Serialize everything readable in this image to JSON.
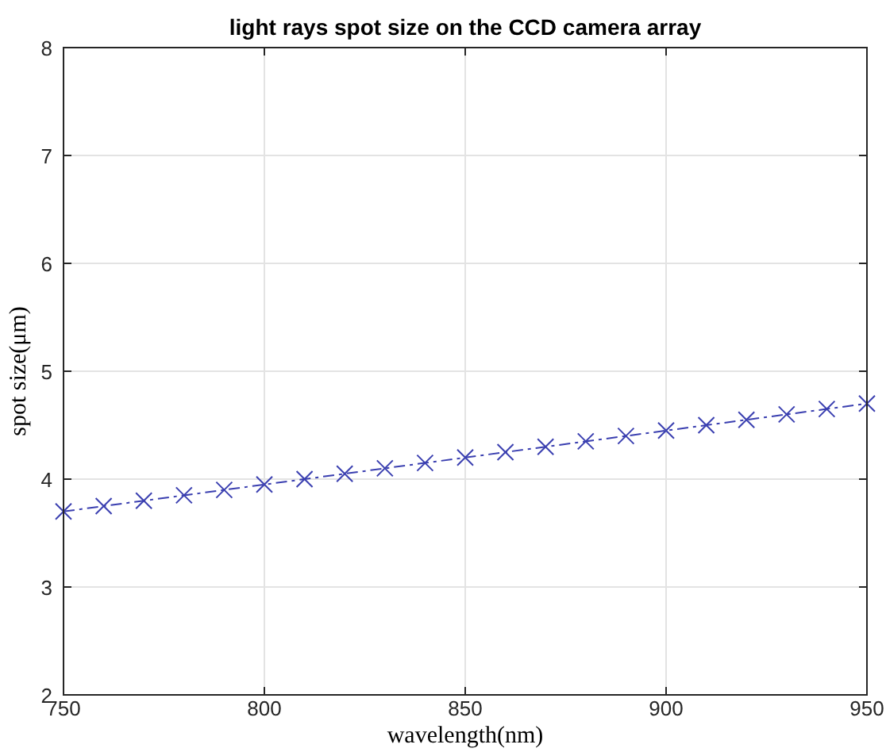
{
  "chart_data": {
    "type": "line",
    "title": "light rays spot size on the CCD camera array",
    "xlabel": "wavelength(nm)",
    "ylabel": "spot size(μm)",
    "x": [
      750,
      760,
      770,
      780,
      790,
      800,
      810,
      820,
      830,
      840,
      850,
      860,
      870,
      880,
      890,
      900,
      910,
      920,
      930,
      940,
      950
    ],
    "series": [
      {
        "color": "#3a3fb0",
        "values": [
          3.7,
          3.75,
          3.8,
          3.85,
          3.9,
          3.95,
          4.0,
          4.05,
          4.1,
          4.15,
          4.2,
          4.25,
          4.3,
          4.35,
          4.4,
          4.45,
          4.5,
          4.55,
          4.6,
          4.65,
          4.7
        ]
      }
    ],
    "xlim": [
      750,
      950
    ],
    "xticks": [
      750,
      800,
      850,
      900,
      950
    ],
    "ylim": [
      2,
      8
    ],
    "yticks": [
      2,
      3,
      4,
      5,
      6,
      7,
      8
    ],
    "grid": true,
    "marker": "cross",
    "line_style": "dashed"
  }
}
